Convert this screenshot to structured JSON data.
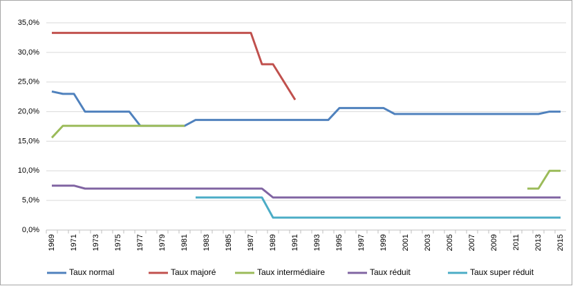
{
  "chart_data": {
    "type": "line",
    "categories": [
      "1969",
      null,
      "1971",
      null,
      "1973",
      null,
      "1975",
      null,
      "1977",
      null,
      "1979",
      null,
      "1981",
      null,
      "1983",
      null,
      "1985",
      null,
      "1987",
      null,
      "1989",
      null,
      "1991",
      null,
      "1993",
      null,
      "1995",
      null,
      "1997",
      null,
      "1999",
      null,
      "2001",
      null,
      "2003",
      null,
      "2005",
      null,
      "2007",
      null,
      "2009",
      null,
      "2011",
      null,
      "2013",
      null,
      "2015"
    ],
    "series": [
      {
        "name": "Taux normal",
        "color": "#4f81bd",
        "values": [
          23.4,
          23,
          23,
          20,
          20,
          20,
          20,
          20,
          17.6,
          17.6,
          17.6,
          17.6,
          17.6,
          18.6,
          18.6,
          18.6,
          18.6,
          18.6,
          18.6,
          18.6,
          18.6,
          18.6,
          18.6,
          18.6,
          18.6,
          18.6,
          20.6,
          20.6,
          20.6,
          20.6,
          20.6,
          19.6,
          19.6,
          19.6,
          19.6,
          19.6,
          19.6,
          19.6,
          19.6,
          19.6,
          19.6,
          19.6,
          19.6,
          19.6,
          19.6,
          20,
          20
        ]
      },
      {
        "name": "Taux majoré",
        "color": "#c0504d",
        "values": [
          33.3,
          33.3,
          33.3,
          33.3,
          33.3,
          33.3,
          33.3,
          33.3,
          33.3,
          33.3,
          33.3,
          33.3,
          33.3,
          33.3,
          33.3,
          33.3,
          33.3,
          33.3,
          33.3,
          28,
          28,
          25,
          22,
          null,
          null,
          null,
          null,
          null,
          null,
          null,
          null,
          null,
          null,
          null,
          null,
          null,
          null,
          null,
          null,
          null,
          null,
          null,
          null,
          null,
          null,
          null,
          null
        ]
      },
      {
        "name": "Taux intermédiaire",
        "color": "#9bbb59",
        "values": [
          15.6,
          17.6,
          17.6,
          17.6,
          17.6,
          17.6,
          17.6,
          17.6,
          17.6,
          17.6,
          17.6,
          17.6,
          17.6,
          null,
          null,
          null,
          null,
          null,
          null,
          null,
          null,
          null,
          null,
          null,
          null,
          null,
          null,
          null,
          null,
          null,
          null,
          null,
          null,
          null,
          null,
          null,
          null,
          null,
          null,
          null,
          null,
          null,
          null,
          7,
          7,
          10,
          10
        ]
      },
      {
        "name": "Taux réduit",
        "color": "#8064a2",
        "values": [
          7.5,
          7.5,
          7.5,
          7,
          7,
          7,
          7,
          7,
          7,
          7,
          7,
          7,
          7,
          7,
          7,
          7,
          7,
          7,
          7,
          7,
          5.5,
          5.5,
          5.5,
          5.5,
          5.5,
          5.5,
          5.5,
          5.5,
          5.5,
          5.5,
          5.5,
          5.5,
          5.5,
          5.5,
          5.5,
          5.5,
          5.5,
          5.5,
          5.5,
          5.5,
          5.5,
          5.5,
          5.5,
          5.5,
          5.5,
          5.5,
          5.5
        ]
      },
      {
        "name": "Taux super réduit",
        "color": "#4bacc6",
        "values": [
          null,
          null,
          null,
          null,
          null,
          null,
          null,
          null,
          null,
          null,
          null,
          null,
          null,
          5.5,
          5.5,
          5.5,
          5.5,
          5.5,
          5.5,
          5.5,
          2.1,
          2.1,
          2.1,
          2.1,
          2.1,
          2.1,
          2.1,
          2.1,
          2.1,
          2.1,
          2.1,
          2.1,
          2.1,
          2.1,
          2.1,
          2.1,
          2.1,
          2.1,
          2.1,
          2.1,
          2.1,
          2.1,
          2.1,
          2.1,
          2.1,
          2.1,
          2.1
        ]
      }
    ],
    "ylim": [
      0,
      35
    ],
    "yticks": [
      {
        "value": 0,
        "label": "0,0%"
      },
      {
        "value": 5,
        "label": "5,0%"
      },
      {
        "value": 10,
        "label": "10,0%"
      },
      {
        "value": 15,
        "label": "15,0%"
      },
      {
        "value": 20,
        "label": "20,0%"
      },
      {
        "value": 25,
        "label": "25,0%"
      },
      {
        "value": 30,
        "label": "30,0%"
      },
      {
        "value": 35,
        "label": "35,0%"
      }
    ],
    "grid": true
  }
}
